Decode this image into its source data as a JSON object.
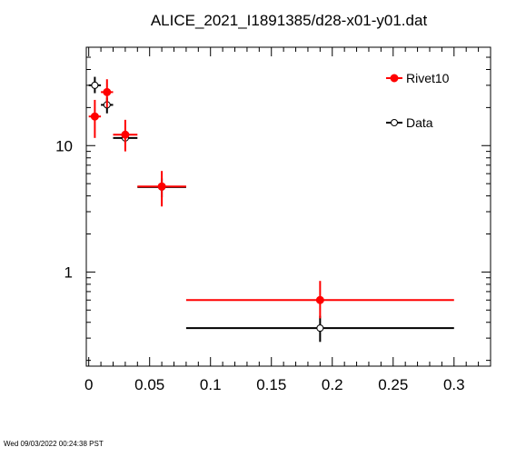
{
  "chart_data": {
    "type": "scatter",
    "title": "ALICE_2021_I1891385/d28-x01-y01.dat",
    "xlabel": "",
    "ylabel": "",
    "xlim": [
      -0.002,
      0.33
    ],
    "ylim": [
      0.18,
      60
    ],
    "y_scale": "log",
    "x_ticks": [
      0,
      0.05,
      0.1,
      0.15,
      0.2,
      0.25,
      0.3
    ],
    "x_tick_labels": [
      "0",
      "0.05",
      "0.1",
      "0.15",
      "0.2",
      "0.25",
      "0.3"
    ],
    "y_ticks": [
      1,
      10
    ],
    "y_tick_labels": [
      "1",
      "10"
    ],
    "legend_position": "top-right",
    "series": [
      {
        "name": "Rivet10",
        "color": "#ff0000",
        "marker": "filled-circle",
        "points": [
          {
            "x": 0.005,
            "xlo": 0.0,
            "xhi": 0.01,
            "y": 17.0,
            "ylo": 11.5,
            "yhi": 23.0
          },
          {
            "x": 0.015,
            "xlo": 0.01,
            "xhi": 0.02,
            "y": 26.5,
            "ylo": 20.0,
            "yhi": 33.5
          },
          {
            "x": 0.03,
            "xlo": 0.02,
            "xhi": 0.04,
            "y": 12.2,
            "ylo": 9.0,
            "yhi": 16.0
          },
          {
            "x": 0.06,
            "xlo": 0.04,
            "xhi": 0.08,
            "y": 4.75,
            "ylo": 3.3,
            "yhi": 6.3
          },
          {
            "x": 0.19,
            "xlo": 0.08,
            "xhi": 0.3,
            "y": 0.6,
            "ylo": 0.43,
            "yhi": 0.85
          }
        ]
      },
      {
        "name": "Data",
        "color": "#000000",
        "marker": "open-circle",
        "points": [
          {
            "x": 0.005,
            "xlo": 0.0,
            "xhi": 0.01,
            "y": 30.0,
            "ylo": 26.0,
            "yhi": 35.0
          },
          {
            "x": 0.015,
            "xlo": 0.01,
            "xhi": 0.02,
            "y": 21.0,
            "ylo": 18.0,
            "yhi": 24.0
          },
          {
            "x": 0.03,
            "xlo": 0.02,
            "xhi": 0.04,
            "y": 11.5,
            "ylo": 10.5,
            "yhi": 12.5
          },
          {
            "x": 0.06,
            "xlo": 0.04,
            "xhi": 0.08,
            "y": 4.7,
            "ylo": 3.9,
            "yhi": 5.5
          },
          {
            "x": 0.19,
            "xlo": 0.08,
            "xhi": 0.3,
            "y": 0.36,
            "ylo": 0.28,
            "yhi": 0.45
          }
        ]
      }
    ]
  },
  "footer": {
    "timestamp": "Wed 09/03/2022 00:24:38 PST"
  }
}
